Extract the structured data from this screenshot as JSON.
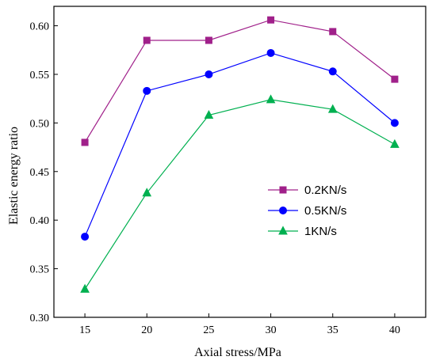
{
  "chart_data": {
    "type": "line",
    "title": "",
    "xlabel": "Axial stress/MPa",
    "ylabel": "Elastic energy ratio",
    "x": [
      15,
      20,
      25,
      30,
      35,
      40
    ],
    "x_ticks": [
      "15",
      "20",
      "25",
      "30",
      "35",
      "40"
    ],
    "xlim": [
      12.5,
      42.5
    ],
    "ylim": [
      0.3,
      0.62
    ],
    "y_ticks": [
      "0.30",
      "0.35",
      "0.40",
      "0.45",
      "0.50",
      "0.55",
      "0.60"
    ],
    "grid": false,
    "legend_position": "center-right",
    "series": [
      {
        "name": "0.2KN/s",
        "values": [
          0.48,
          0.585,
          0.585,
          0.606,
          0.594,
          0.545
        ],
        "color": "#a0208a",
        "marker": "square"
      },
      {
        "name": "0.5KN/s",
        "values": [
          0.383,
          0.533,
          0.55,
          0.572,
          0.553,
          0.5
        ],
        "color": "#0000ff",
        "marker": "circle"
      },
      {
        "name": "1KN/s",
        "values": [
          0.329,
          0.428,
          0.508,
          0.524,
          0.514,
          0.478
        ],
        "color": "#00b050",
        "marker": "triangle"
      }
    ]
  }
}
